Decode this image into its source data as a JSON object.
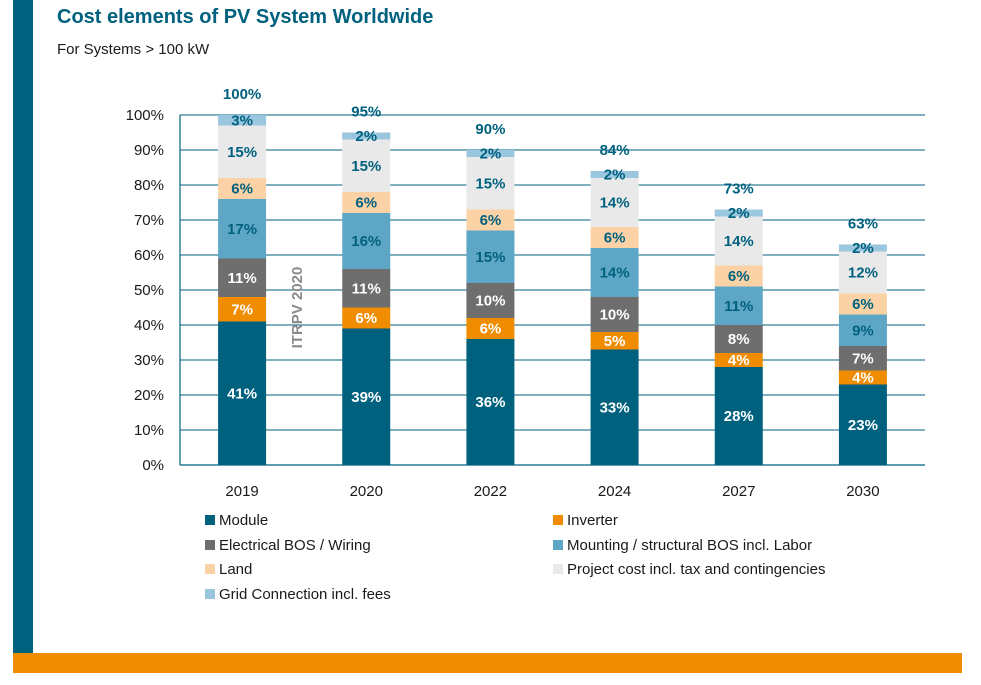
{
  "title": "Cost elements of PV System Worldwide",
  "subtitle": "For Systems > 100 kW",
  "colors": {
    "brand_blue": "#00617f",
    "brand_orange": "#ef8c00"
  },
  "chart_data": {
    "type": "bar",
    "stacked": true,
    "categories": [
      "2019",
      "2020",
      "2022",
      "2024",
      "2027",
      "2030"
    ],
    "totals": [
      "100%",
      "95%",
      "90%",
      "84%",
      "73%",
      "63%"
    ],
    "ylim": [
      0,
      100
    ],
    "yticks": [
      "0%",
      "10%",
      "20%",
      "30%",
      "40%",
      "50%",
      "60%",
      "70%",
      "80%",
      "90%",
      "100%"
    ],
    "grid": true,
    "annotation": "ITRPV 2020",
    "legend_position": "bottom",
    "series": [
      {
        "name": "Module",
        "color": "#00617f",
        "label_color": "#ffffff",
        "values": [
          41,
          39,
          36,
          33,
          28,
          23
        ]
      },
      {
        "name": "Inverter",
        "color": "#ef8c00",
        "label_color": "#ffffff",
        "values": [
          7,
          6,
          6,
          5,
          4,
          4
        ]
      },
      {
        "name": "Electrical BOS / Wiring",
        "color": "#6e6e6e",
        "label_color": "#ffffff",
        "values": [
          11,
          11,
          10,
          10,
          8,
          7
        ]
      },
      {
        "name": "Mounting / structural BOS incl. Labor",
        "color": "#5ea6c5",
        "label_color": "#00617f",
        "values": [
          17,
          16,
          15,
          14,
          11,
          9
        ]
      },
      {
        "name": "Land",
        "color": "#fbd2a6",
        "label_color": "#00617f",
        "values": [
          6,
          6,
          6,
          6,
          6,
          6
        ]
      },
      {
        "name": "Project cost incl. tax and contingencies",
        "color": "#e9e9e9",
        "label_color": "#00617f",
        "values": [
          15,
          15,
          15,
          14,
          14,
          12
        ]
      },
      {
        "name": "Grid Connection incl. fees",
        "color": "#9ac6df",
        "label_color": "#00617f",
        "values": [
          3,
          2,
          2,
          2,
          2,
          2
        ]
      }
    ]
  }
}
